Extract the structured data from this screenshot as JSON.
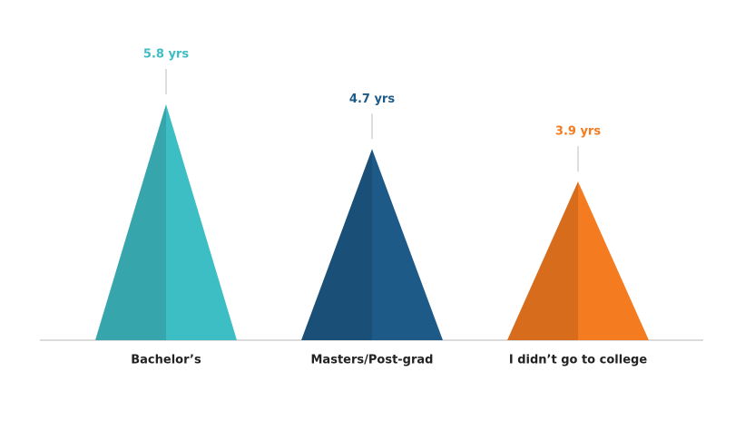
{
  "chart_data": {
    "type": "bar",
    "shape": "triangle",
    "categories": [
      "Bachelor’s",
      "Masters/Post-grad",
      "I didn’t go to college"
    ],
    "values": [
      5.8,
      4.7,
      3.9
    ],
    "value_labels": [
      "5.8 yrs",
      "4.7 yrs",
      "3.9 yrs"
    ],
    "colors": [
      "#3dbdc4",
      "#1e5a87",
      "#f47b20"
    ]
  }
}
